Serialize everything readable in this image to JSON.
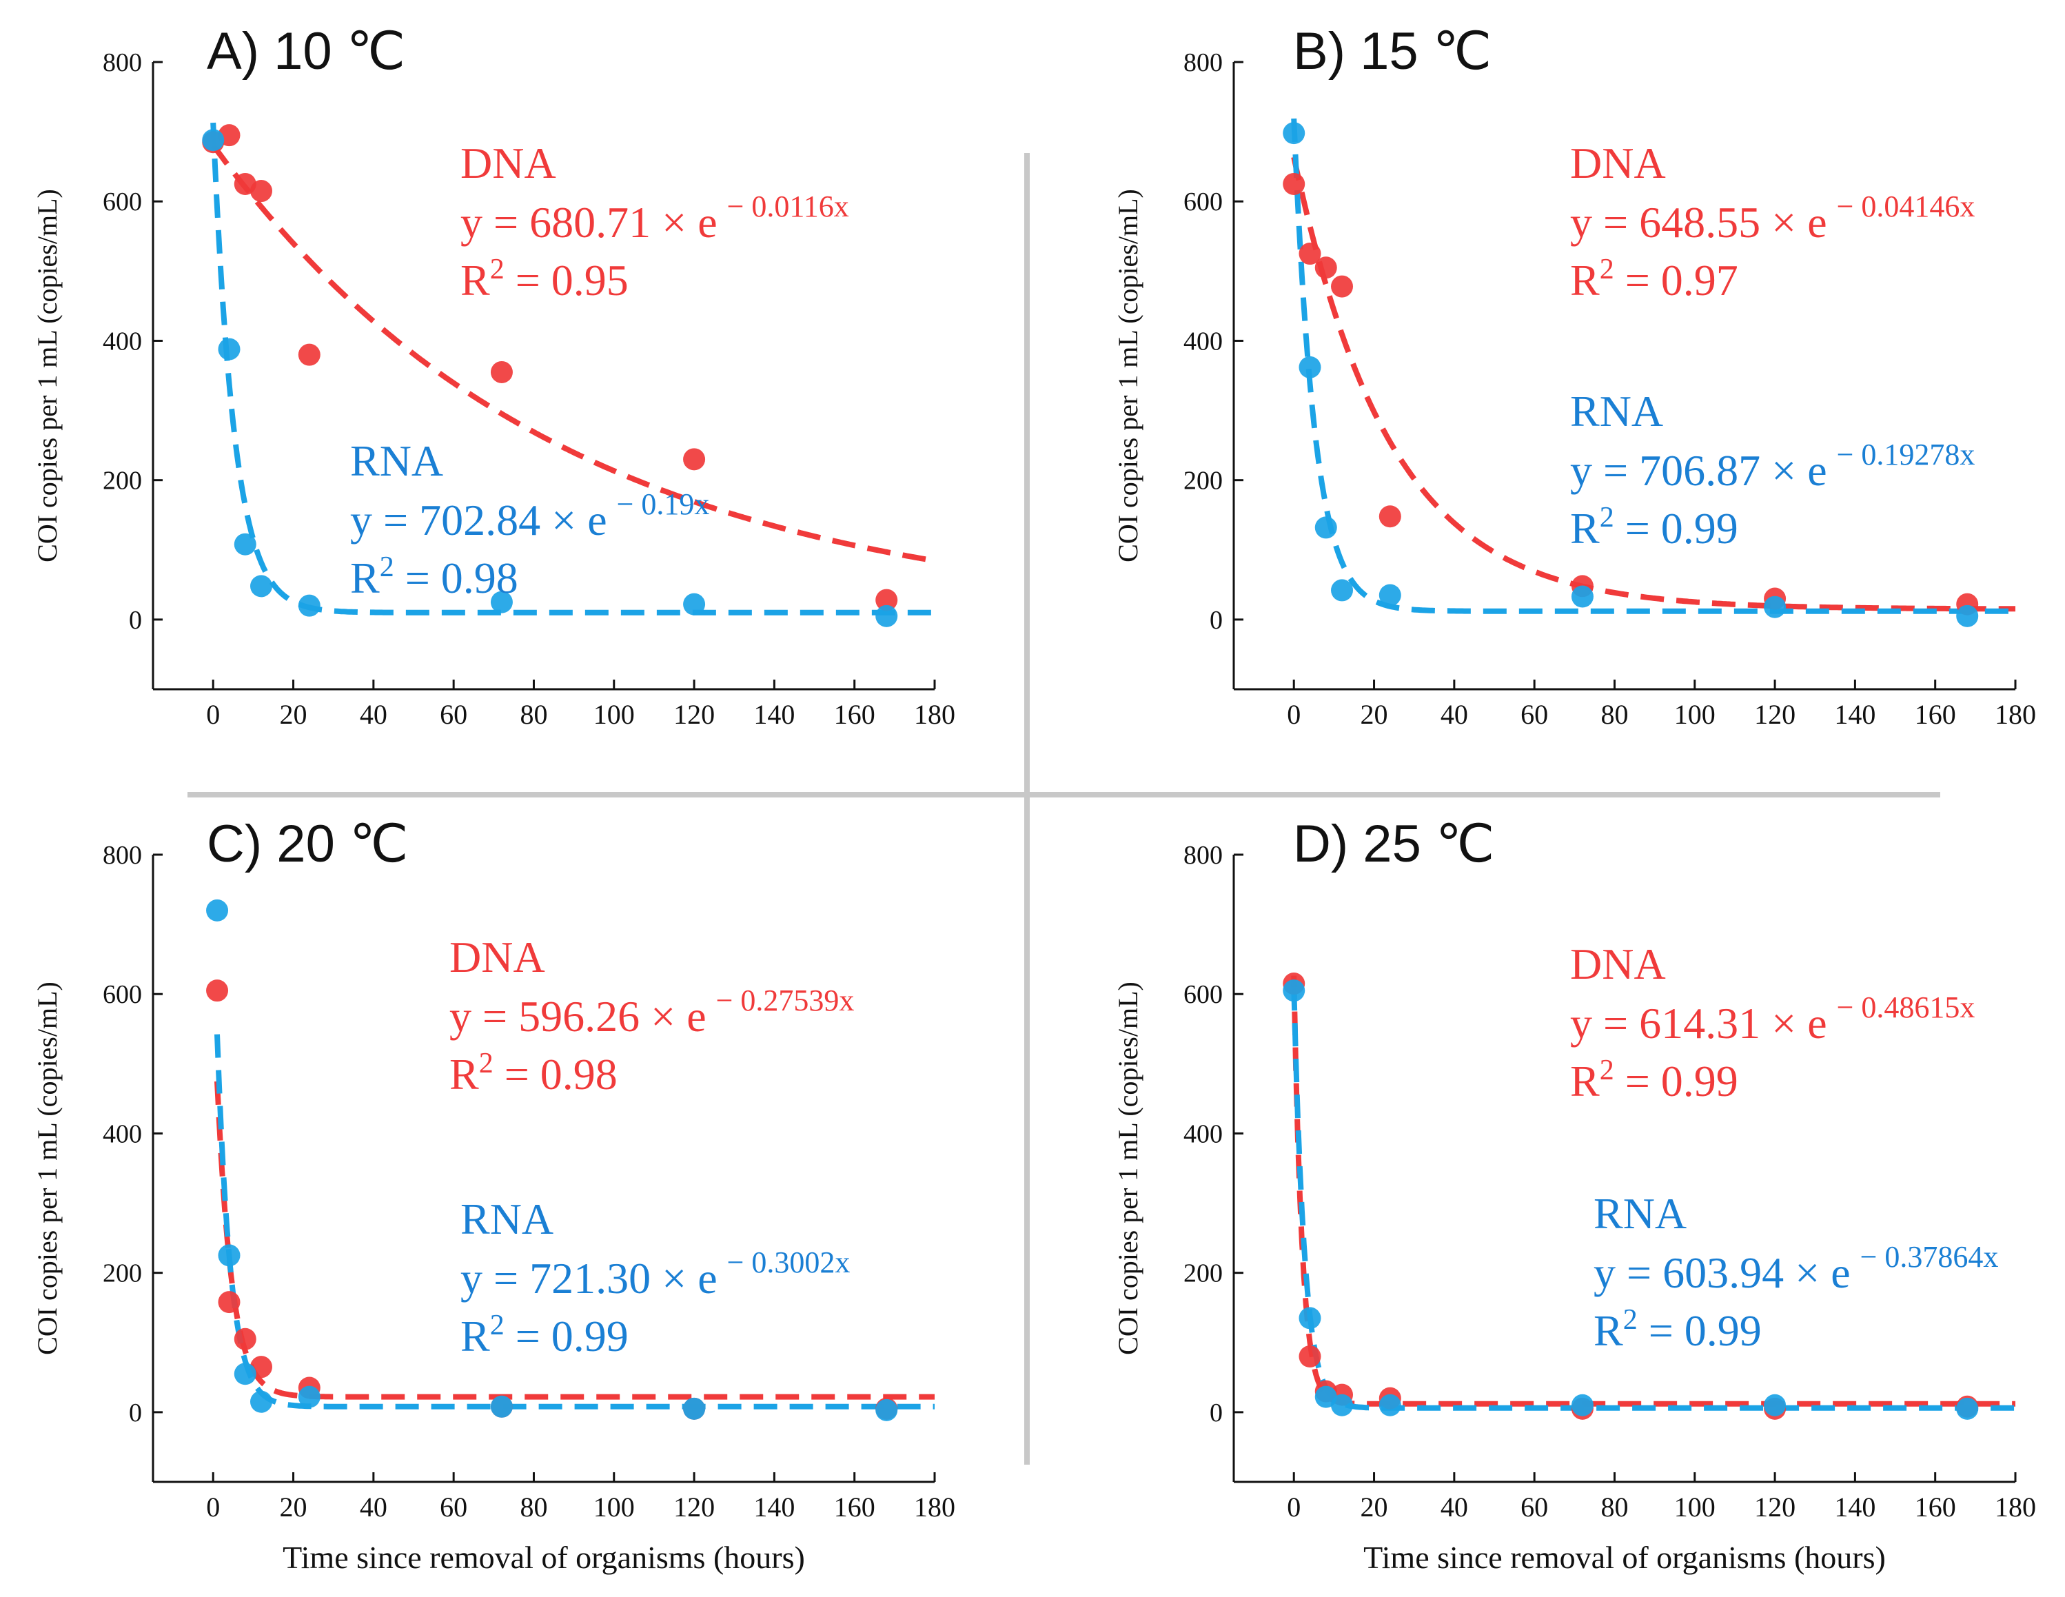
{
  "colors": {
    "dna": "#f03a3a",
    "rna": "#1ba3e6",
    "label_rna": "#1a7fd4",
    "divider": "#c8c8c8",
    "axis": "#111111"
  },
  "xlabel_bottom": "Time since removal of organisms (hours)",
  "chart_data": [
    {
      "type": "scatter",
      "title": "A) 10 ℃",
      "xlabel": "",
      "ylabel": "COI copies per 1 mL (copies/mL)",
      "xlim": [
        -15,
        180
      ],
      "ylim": [
        -100,
        800
      ],
      "xticks": [
        0,
        20,
        40,
        60,
        80,
        100,
        120,
        140,
        160,
        180
      ],
      "yticks": [
        0,
        200,
        400,
        600,
        800
      ],
      "series": [
        {
          "name": "DNA",
          "x": [
            0,
            4,
            8,
            12,
            24,
            72,
            120,
            168
          ],
          "y": [
            685,
            695,
            625,
            615,
            380,
            355,
            230,
            28
          ],
          "fit": {
            "a": 680.71,
            "b": 0.0116,
            "c": 0
          },
          "label": "DNA",
          "equation": "y = 680.71 × e",
          "exponent": "− 0.0116x",
          "r2_prefix": "R",
          "r2_value": "= 0.95"
        },
        {
          "name": "RNA",
          "x": [
            0,
            4,
            8,
            12,
            24,
            72,
            120,
            168
          ],
          "y": [
            688,
            388,
            108,
            48,
            20,
            25,
            22,
            5
          ],
          "fit": {
            "a": 702.84,
            "b": 0.19,
            "c": 10
          },
          "label": "RNA",
          "equation": "y = 702.84 × e",
          "exponent": "− 0.19x",
          "r2_prefix": "R",
          "r2_value": "= 0.98"
        }
      ]
    },
    {
      "type": "scatter",
      "title": "B) 15 ℃",
      "xlabel": "",
      "ylabel": "COI copies per 1 mL (copies/mL)",
      "xlim": [
        -15,
        180
      ],
      "ylim": [
        -100,
        800
      ],
      "xticks": [
        0,
        20,
        40,
        60,
        80,
        100,
        120,
        140,
        160,
        180
      ],
      "yticks": [
        0,
        200,
        400,
        600,
        800
      ],
      "series": [
        {
          "name": "DNA",
          "x": [
            0,
            4,
            8,
            12,
            24,
            72,
            120,
            168
          ],
          "y": [
            625,
            525,
            505,
            478,
            148,
            48,
            30,
            22
          ],
          "fit": {
            "a": 648.55,
            "b": 0.04146,
            "c": 15
          },
          "label": "DNA",
          "equation": "y = 648.55 × e",
          "exponent": "− 0.04146x",
          "r2_prefix": "R",
          "r2_value": "= 0.97"
        },
        {
          "name": "RNA",
          "x": [
            0,
            4,
            8,
            12,
            24,
            72,
            120,
            168
          ],
          "y": [
            698,
            362,
            132,
            42,
            35,
            33,
            18,
            5
          ],
          "fit": {
            "a": 706.87,
            "b": 0.19278,
            "c": 12
          },
          "label": "RNA",
          "equation": "y = 706.87 × e",
          "exponent": "− 0.19278x",
          "r2_prefix": "R",
          "r2_value": "= 0.99"
        }
      ]
    },
    {
      "type": "scatter",
      "title": "C) 20 ℃",
      "xlabel": "Time since removal of organisms (hours)",
      "ylabel": "COI copies per 1 mL (copies/mL)",
      "xlim": [
        -15,
        180
      ],
      "ylim": [
        -100,
        800
      ],
      "xticks": [
        0,
        20,
        40,
        60,
        80,
        100,
        120,
        140,
        160,
        180
      ],
      "yticks": [
        0,
        200,
        400,
        600,
        800
      ],
      "series": [
        {
          "name": "DNA",
          "x": [
            1,
            4,
            8,
            12,
            24,
            72,
            120,
            168
          ],
          "y": [
            605,
            158,
            105,
            65,
            35,
            8,
            5,
            5
          ],
          "fit": {
            "a": 596.26,
            "b": 0.27539,
            "c": 22
          },
          "label": "DNA",
          "equation": "y = 596.26 × e",
          "exponent": "− 0.27539x",
          "r2_prefix": "R",
          "r2_value": "= 0.98"
        },
        {
          "name": "RNA",
          "x": [
            1,
            4,
            8,
            12,
            24,
            72,
            120,
            168
          ],
          "y": [
            720,
            225,
            55,
            15,
            22,
            8,
            5,
            3
          ],
          "fit": {
            "a": 721.3,
            "b": 0.3002,
            "c": 8
          },
          "label": "RNA",
          "equation": "y = 721.30 × e",
          "exponent": "− 0.3002x",
          "r2_prefix": "R",
          "r2_value": "= 0.99"
        }
      ]
    },
    {
      "type": "scatter",
      "title": "D) 25 ℃",
      "xlabel": "Time since removal of organisms (hours)",
      "ylabel": "COI copies per 1 mL (copies/mL)",
      "xlim": [
        -15,
        180
      ],
      "ylim": [
        -100,
        800
      ],
      "xticks": [
        0,
        20,
        40,
        60,
        80,
        100,
        120,
        140,
        160,
        180
      ],
      "yticks": [
        0,
        200,
        400,
        600,
        800
      ],
      "series": [
        {
          "name": "DNA",
          "x": [
            0,
            4,
            8,
            12,
            24,
            72,
            120,
            168
          ],
          "y": [
            615,
            80,
            30,
            25,
            20,
            5,
            5,
            8
          ],
          "fit": {
            "a": 614.31,
            "b": 0.48615,
            "c": 12
          },
          "label": "DNA",
          "equation": "y = 614.31 × e",
          "exponent": "− 0.48615x",
          "r2_prefix": "R",
          "r2_value": "= 0.99"
        },
        {
          "name": "RNA",
          "x": [
            0,
            4,
            8,
            12,
            24,
            72,
            120,
            168
          ],
          "y": [
            605,
            135,
            22,
            10,
            10,
            10,
            10,
            5
          ],
          "fit": {
            "a": 603.94,
            "b": 0.37864,
            "c": 6
          },
          "label": "RNA",
          "equation": "y = 603.94 × e",
          "exponent": "− 0.37864x",
          "r2_prefix": "R",
          "r2_value": "= 0.99"
        }
      ]
    }
  ]
}
